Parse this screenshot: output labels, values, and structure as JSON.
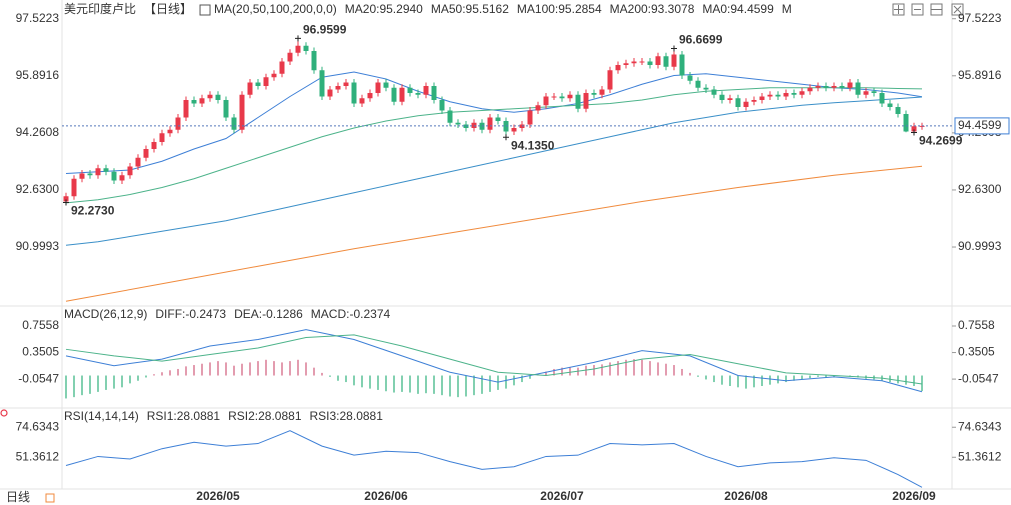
{
  "chart_data": [
    {
      "type": "candlestick",
      "title": "美元印度卢比",
      "period": "【日线】",
      "indicator": "MA(20,50,100,200,0,0)",
      "up_color": "#e8394a",
      "down_color": "#2fb07c",
      "ylim": [
        89.4,
        98.0
      ],
      "yticks": [
        97.5223,
        95.8916,
        94.2608,
        {
          "value": 92.63,
          "label": "92.6300"
        },
        90.9993
      ],
      "categories": [
        null,
        null,
        null,
        null,
        null,
        null,
        null,
        null,
        null,
        null,
        null,
        null,
        null,
        null,
        null,
        null,
        null,
        null,
        null,
        "2026/05",
        null,
        null,
        null,
        null,
        null,
        null,
        null,
        null,
        null,
        null,
        null,
        null,
        null,
        null,
        null,
        null,
        null,
        null,
        null,
        null,
        "2026/06",
        null,
        null,
        null,
        null,
        null,
        null,
        null,
        null,
        null,
        null,
        null,
        null,
        null,
        null,
        null,
        null,
        null,
        null,
        null,
        null,
        null,
        "2026/07",
        null,
        null,
        null,
        null,
        null,
        null,
        null,
        null,
        null,
        null,
        null,
        null,
        null,
        null,
        null,
        null,
        null,
        null,
        null,
        null,
        null,
        null,
        "2026/08",
        null,
        null,
        null,
        null,
        null,
        null,
        null,
        null,
        null,
        null,
        null,
        null,
        null,
        null,
        null,
        null,
        null,
        null,
        null,
        null,
        "2026/09",
        null
      ],
      "open": [
        92.3,
        92.45,
        92.95,
        93.1,
        93.05,
        93.25,
        93.15,
        92.9,
        93.05,
        93.3,
        93.55,
        93.8,
        94,
        94.25,
        94.35,
        94.7,
        95.2,
        95.1,
        95.25,
        95.35,
        95.2,
        94.7,
        94.35,
        95.35,
        95.7,
        95.6,
        95.85,
        95.95,
        96.3,
        96.55,
        96.75,
        96.6,
        96.05,
        95.3,
        95.5,
        95.6,
        95.7,
        95.1,
        95.25,
        95.4,
        95.7,
        95.55,
        95.15,
        95.55,
        95.4,
        95.35,
        95.6,
        95.2,
        94.9,
        94.55,
        94.5,
        94.4,
        94.55,
        94.35,
        94.7,
        94.6,
        94.3,
        94.4,
        94.5,
        94.9,
        95.05,
        95.3,
        95.3,
        95.25,
        95.35,
        94.95,
        95.4,
        95.35,
        95.5,
        96.05,
        96.2,
        96.25,
        96.3,
        96.3,
        96.2,
        96.45,
        96.15,
        96.5,
        95.9,
        95.75,
        95.55,
        95.5,
        95.35,
        95.2,
        95.25,
        95,
        95.15,
        95.2,
        95.3,
        95.35,
        95.3,
        95.4,
        95.35,
        95.45,
        95.55,
        95.6,
        95.55,
        95.6,
        95.55,
        95.7,
        95.35,
        95.45,
        95.4,
        95.1,
        95,
        94.8,
        94.3,
        94.45
      ],
      "high": [
        92.55,
        93.05,
        93.2,
        93.2,
        93.35,
        93.35,
        93.25,
        93.15,
        93.4,
        93.65,
        93.9,
        94.1,
        94.35,
        94.45,
        94.8,
        95.3,
        95.3,
        95.35,
        95.45,
        95.45,
        95.3,
        94.8,
        95.45,
        95.8,
        95.8,
        95.95,
        96.05,
        96.4,
        96.65,
        96.9599,
        96.85,
        96.7,
        96.15,
        95.6,
        95.7,
        95.8,
        95.8,
        95.35,
        95.5,
        95.8,
        95.8,
        95.65,
        95.65,
        95.65,
        95.5,
        95.7,
        95.7,
        95.3,
        95,
        94.65,
        94.6,
        94.65,
        94.65,
        94.8,
        94.8,
        94.7,
        94.5,
        94.6,
        95,
        95.15,
        95.4,
        95.4,
        95.4,
        95.45,
        95.45,
        95.5,
        95.5,
        95.6,
        96.15,
        96.3,
        96.35,
        96.4,
        96.4,
        96.4,
        96.55,
        96.55,
        96.6699,
        96.6,
        96,
        95.85,
        95.65,
        95.6,
        95.45,
        95.35,
        95.35,
        95.25,
        95.3,
        95.4,
        95.45,
        95.45,
        95.5,
        95.5,
        95.55,
        95.65,
        95.7,
        95.7,
        95.7,
        95.7,
        95.8,
        95.8,
        95.55,
        95.55,
        95.5,
        95.2,
        95.1,
        94.9,
        94.55,
        94.55
      ],
      "low": [
        92.273,
        92.35,
        92.85,
        92.95,
        92.95,
        93.05,
        92.8,
        92.8,
        92.95,
        93.2,
        93.45,
        93.7,
        93.9,
        94.15,
        94.25,
        94.6,
        95,
        95,
        95.15,
        95.1,
        94.6,
        94.25,
        94.25,
        95.25,
        95.5,
        95.5,
        95.75,
        95.85,
        96.2,
        96.45,
        96.5,
        95.95,
        95.2,
        95.2,
        95.4,
        95.5,
        95,
        95,
        95.15,
        95.3,
        95.45,
        95.05,
        95.05,
        95.3,
        95.25,
        95.25,
        95.1,
        94.8,
        94.45,
        94.4,
        94.3,
        94.3,
        94.25,
        94.25,
        94.5,
        94.135,
        94.2,
        94.3,
        94.4,
        94.8,
        94.95,
        95.2,
        95.15,
        95.15,
        94.85,
        94.85,
        95.25,
        95.25,
        95.4,
        95.95,
        96.1,
        96.15,
        96.2,
        96.1,
        96.1,
        96.05,
        96.05,
        95.8,
        95.65,
        95.45,
        95.4,
        95.25,
        95.1,
        95.1,
        94.9,
        94.9,
        95.05,
        95.1,
        95.2,
        95.2,
        95.2,
        95.25,
        95.25,
        95.35,
        95.45,
        95.45,
        95.45,
        95.45,
        95.45,
        95.25,
        95.25,
        95.3,
        95,
        94.9,
        94.7,
        94.28,
        94.2699,
        94.35
      ],
      "close": [
        92.45,
        92.95,
        93.1,
        93.05,
        93.25,
        93.15,
        92.9,
        93.05,
        93.3,
        93.55,
        93.8,
        94,
        94.25,
        94.35,
        94.7,
        95.2,
        95.1,
        95.25,
        95.35,
        95.2,
        94.7,
        94.35,
        95.35,
        95.7,
        95.6,
        95.85,
        95.95,
        96.3,
        96.55,
        96.75,
        96.6,
        96.05,
        95.3,
        95.5,
        95.6,
        95.7,
        95.1,
        95.25,
        95.4,
        95.7,
        95.55,
        95.15,
        95.55,
        95.4,
        95.35,
        95.6,
        95.2,
        94.9,
        94.55,
        94.5,
        94.4,
        94.55,
        94.35,
        94.7,
        94.6,
        94.3,
        94.4,
        94.5,
        94.9,
        95.05,
        95.3,
        95.3,
        95.25,
        95.35,
        94.95,
        95.4,
        95.35,
        95.5,
        96.05,
        96.2,
        96.25,
        96.3,
        96.3,
        96.2,
        96.45,
        96.15,
        96.5,
        95.9,
        95.75,
        95.55,
        95.5,
        95.35,
        95.2,
        95.25,
        95,
        95.15,
        95.2,
        95.3,
        95.35,
        95.3,
        95.4,
        95.35,
        95.45,
        95.55,
        95.6,
        95.55,
        95.6,
        95.55,
        95.7,
        95.35,
        95.45,
        95.4,
        95.1,
        95,
        94.8,
        94.3,
        94.45,
        94.4599
      ],
      "series": [
        {
          "name": "MA20:95.2940",
          "color": "#3d7fd6",
          "x": [
            0,
            4,
            8,
            12,
            16,
            20,
            24,
            28,
            32,
            36,
            40,
            44,
            48,
            52,
            56,
            60,
            64,
            68,
            72,
            76,
            80,
            84,
            88,
            92,
            96,
            100,
            104,
            107
          ],
          "values": [
            93.1,
            93.15,
            93.2,
            93.45,
            93.8,
            94.1,
            94.7,
            95.3,
            95.85,
            96,
            95.8,
            95.45,
            95.15,
            94.95,
            94.85,
            94.95,
            95.1,
            95.35,
            95.65,
            95.9,
            95.95,
            95.85,
            95.75,
            95.65,
            95.55,
            95.5,
            95.4,
            95.294
          ]
        },
        {
          "name": "MA50:95.5162",
          "color": "#4cb38a",
          "x": [
            0,
            4,
            8,
            12,
            16,
            20,
            24,
            28,
            32,
            36,
            40,
            44,
            48,
            52,
            56,
            60,
            64,
            68,
            72,
            76,
            80,
            84,
            88,
            92,
            96,
            100,
            104,
            107
          ],
          "values": [
            92.26,
            92.35,
            92.5,
            92.7,
            92.95,
            93.25,
            93.55,
            93.85,
            94.15,
            94.4,
            94.6,
            94.75,
            94.85,
            94.9,
            94.95,
            95,
            95.05,
            95.1,
            95.2,
            95.35,
            95.45,
            95.5,
            95.55,
            95.55,
            95.55,
            95.55,
            95.53,
            95.5162
          ]
        },
        {
          "name": "MA100:95.2854",
          "color": "#3a8fc8",
          "x": [
            0,
            4,
            8,
            12,
            16,
            20,
            24,
            28,
            32,
            36,
            40,
            44,
            48,
            52,
            56,
            60,
            64,
            68,
            72,
            76,
            80,
            84,
            88,
            92,
            96,
            100,
            104,
            107
          ],
          "values": [
            91.05,
            91.15,
            91.3,
            91.45,
            91.6,
            91.75,
            91.95,
            92.15,
            92.35,
            92.55,
            92.75,
            92.95,
            93.15,
            93.35,
            93.55,
            93.75,
            93.95,
            94.15,
            94.35,
            94.55,
            94.7,
            94.85,
            94.95,
            95.05,
            95.12,
            95.18,
            95.24,
            95.2854
          ]
        },
        {
          "name": "MA200:93.3078",
          "color": "#f08a3c",
          "x": [
            0,
            12,
            24,
            36,
            48,
            60,
            72,
            84,
            96,
            107
          ],
          "values": [
            89.45,
            89.95,
            90.45,
            90.95,
            91.4,
            91.85,
            92.3,
            92.7,
            93.05,
            93.3078
          ]
        }
      ],
      "legend_extra": [
        {
          "label": "MA0:94.4599",
          "color": "#e58adf"
        },
        {
          "label": "M",
          "color": "#b77ad8"
        }
      ],
      "last_price": 94.4599,
      "high_labels": [
        {
          "index": 29,
          "label": "96.9599"
        },
        {
          "index": 76,
          "label": "96.6699"
        }
      ],
      "low_labels": [
        {
          "index": 0,
          "label": "92.2730"
        },
        {
          "index": 55,
          "label": "94.1350"
        },
        {
          "index": 106,
          "label": "94.2699"
        }
      ]
    },
    {
      "type": "macd",
      "indicator": "MACD(26,12,9)",
      "ylim": [
        -0.45,
        1.0
      ],
      "yticks": [
        0.7558,
        0.3505,
        -0.0547
      ],
      "up_color": "#d05a7a",
      "down_color": "#2fb07c",
      "values": [
        -0.35,
        -0.33,
        -0.3,
        -0.28,
        -0.25,
        -0.22,
        -0.2,
        -0.18,
        -0.12,
        -0.08,
        -0.03,
        0.02,
        0.05,
        0.08,
        0.1,
        0.14,
        0.16,
        0.18,
        0.2,
        0.22,
        0.2,
        0.15,
        0.18,
        0.2,
        0.22,
        0.24,
        0.22,
        0.2,
        0.22,
        0.24,
        0.2,
        0.12,
        0.04,
        -0.02,
        -0.08,
        -0.1,
        -0.15,
        -0.18,
        -0.2,
        -0.22,
        -0.24,
        -0.26,
        -0.25,
        -0.26,
        -0.28,
        -0.27,
        -0.28,
        -0.3,
        -0.32,
        -0.33,
        -0.32,
        -0.3,
        -0.28,
        -0.25,
        -0.22,
        -0.2,
        -0.15,
        -0.1,
        -0.05,
        0.02,
        0.06,
        0.1,
        0.12,
        0.13,
        0.12,
        0.15,
        0.16,
        0.17,
        0.2,
        0.22,
        0.24,
        0.25,
        0.24,
        0.22,
        0.2,
        0.18,
        0.16,
        0.1,
        0.04,
        -0.02,
        -0.06,
        -0.1,
        -0.14,
        -0.16,
        -0.18,
        -0.2,
        -0.18,
        -0.16,
        -0.14,
        -0.12,
        -0.1,
        -0.08,
        -0.06,
        -0.04,
        -0.02,
        -0.03,
        -0.02,
        -0.01,
        -0.02,
        -0.03,
        -0.05,
        -0.06,
        -0.08,
        -0.1,
        -0.12,
        -0.14,
        -0.16,
        -0.2374
      ],
      "hist_label": "MACD:-0.2374",
      "hist_color": "#3d7fd6",
      "series": [
        {
          "name": "DIFF:-0.2473",
          "color": "#3d7fd6",
          "x": [
            0,
            6,
            12,
            18,
            24,
            30,
            36,
            42,
            48,
            54,
            60,
            66,
            72,
            78,
            84,
            90,
            96,
            102,
            107
          ],
          "values": [
            0.3,
            0.15,
            0.25,
            0.45,
            0.55,
            0.7,
            0.55,
            0.3,
            0.05,
            -0.1,
            0.05,
            0.2,
            0.38,
            0.3,
            0,
            -0.08,
            -0.02,
            -0.08,
            -0.2473
          ]
        },
        {
          "name": "DEA:-0.1286",
          "color": "#4cb38a",
          "x": [
            0,
            6,
            12,
            18,
            24,
            30,
            36,
            42,
            48,
            54,
            60,
            66,
            72,
            78,
            84,
            90,
            96,
            102,
            107
          ],
          "values": [
            0.4,
            0.3,
            0.22,
            0.32,
            0.42,
            0.58,
            0.62,
            0.45,
            0.25,
            0.05,
            0,
            0.1,
            0.25,
            0.32,
            0.18,
            0.04,
            0,
            -0.04,
            -0.1286
          ]
        }
      ]
    },
    {
      "type": "line",
      "indicator": "RSI(14,14,14)",
      "ylim": [
        26,
        88
      ],
      "yticks": [
        74.6343,
        51.3612
      ],
      "series": [
        {
          "name": "RSI1:28.0881",
          "color": "#3d7fd6",
          "x": [
            0,
            4,
            8,
            12,
            16,
            20,
            24,
            28,
            32,
            36,
            40,
            44,
            48,
            52,
            56,
            60,
            64,
            68,
            72,
            76,
            80,
            84,
            88,
            92,
            96,
            100,
            104,
            107
          ],
          "values": [
            45,
            52,
            50,
            58,
            63,
            60,
            62,
            72,
            60,
            53,
            56,
            55,
            48,
            42,
            44,
            52,
            53,
            62,
            61,
            62,
            52,
            44,
            47,
            48,
            51,
            49,
            38,
            28.0881
          ]
        }
      ],
      "legend_extra": [
        {
          "label": "RSI2:28.0881",
          "color": "#4cb38a"
        },
        {
          "label": "RSI3:28.0881",
          "color": "#3a8fc8"
        }
      ],
      "bottom_label": "日线"
    }
  ]
}
